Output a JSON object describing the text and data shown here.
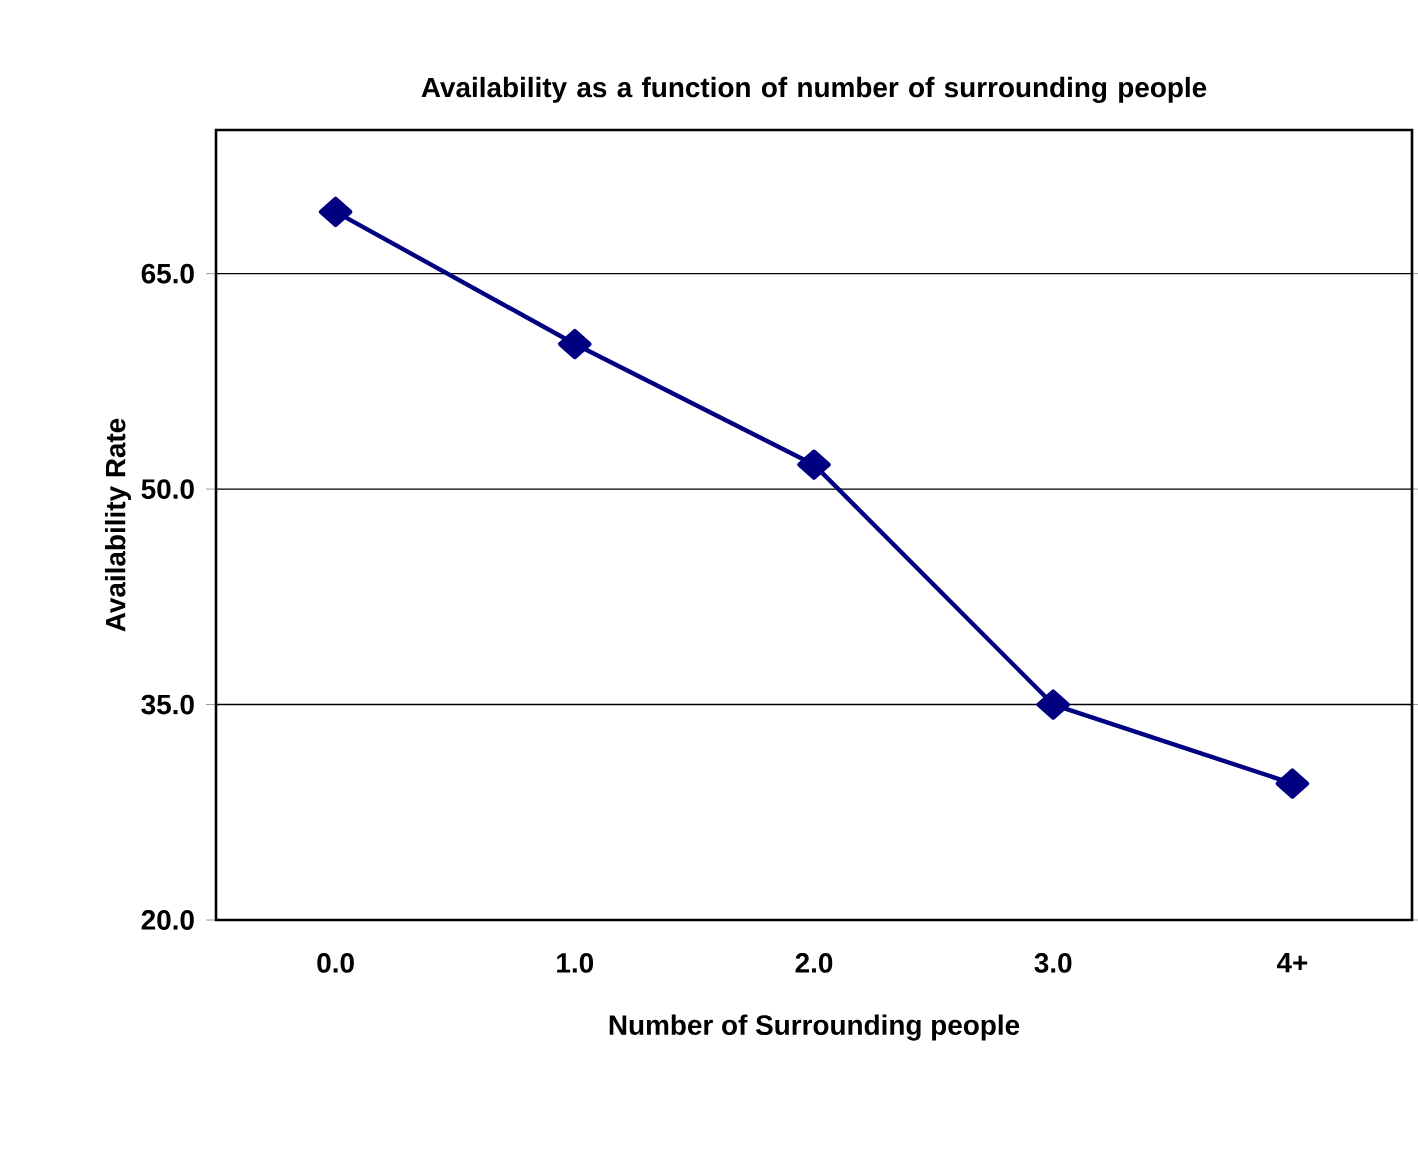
{
  "chart_data": {
    "type": "line",
    "title": "Availability as a function of number of surrounding people",
    "xlabel": "Number of Surrounding people",
    "ylabel": "Availability Rate",
    "categories": [
      "0.0",
      "1.0",
      "2.0",
      "3.0",
      "4+"
    ],
    "series": [
      {
        "color": "#000080",
        "values": [
          69.3,
          60.1,
          51.7,
          35.0,
          29.5
        ]
      }
    ],
    "ylim": [
      20,
      75
    ],
    "yticks": [
      {
        "value": 20,
        "label": "20.0"
      },
      {
        "value": 35,
        "label": "35.0"
      },
      {
        "value": 50,
        "label": "50.0"
      },
      {
        "value": 65,
        "label": "65.0"
      }
    ],
    "grid": "y",
    "marker": "diamond",
    "line_style": "solid"
  }
}
